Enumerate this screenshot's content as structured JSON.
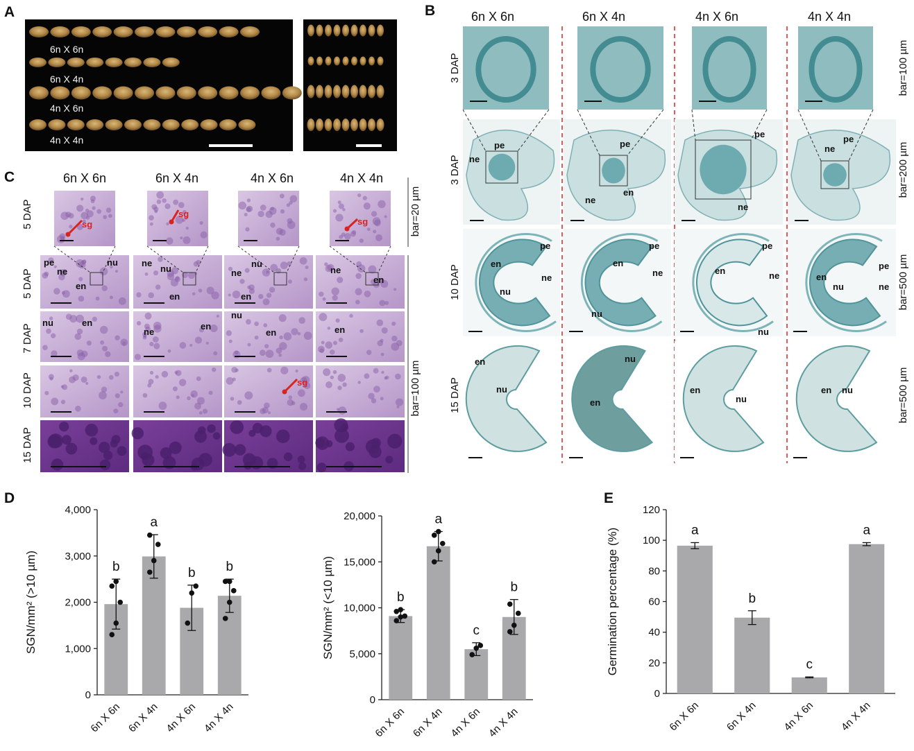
{
  "panels": {
    "A": {
      "label": "A",
      "seed_rows": [
        "6n X 6n",
        "6n X 4n",
        "4n X 6n",
        "4n X 4n"
      ]
    },
    "B": {
      "label": "B",
      "crosses": [
        "6n X 6n",
        "6n X 4n",
        "4n X 6n",
        "4n X 4n"
      ],
      "rows": [
        {
          "stage": "3 DAP",
          "bar": "bar=100 µm"
        },
        {
          "stage": "3 DAP",
          "bar": "bar=200 µm"
        },
        {
          "stage": "10 DAP",
          "bar": "bar=500 µm"
        },
        {
          "stage": "15 DAP",
          "bar": "bar=500 µm"
        }
      ],
      "tissue_labels": [
        "pe",
        "ne",
        "en",
        "nu"
      ]
    },
    "C": {
      "label": "C",
      "crosses": [
        "6n X 6n",
        "6n X 4n",
        "4n X 6n",
        "4n X 4n"
      ],
      "stages": [
        "5 DAP",
        "5 DAP",
        "7 DAP",
        "10 DAP",
        "15 DAP"
      ],
      "bar_top": "bar=20 µm",
      "bar_bottom": "bar=100 µm",
      "sg": "sg"
    },
    "D": {
      "label": "D"
    },
    "E": {
      "label": "E"
    }
  },
  "chart_data": [
    {
      "type": "bar",
      "panel": "D",
      "categories": [
        "6n X 6n",
        "6n X 4n",
        "4n X 6n",
        "4n X 4n"
      ],
      "values": [
        1960,
        2990,
        1880,
        2140
      ],
      "errors": [
        540,
        470,
        490,
        360
      ],
      "points": [
        [
          1300,
          1550,
          2000,
          2350,
          2450
        ],
        [
          2650,
          2900,
          3250,
          3450
        ],
        [
          1550,
          2200,
          2350
        ],
        [
          1650,
          2000,
          2250,
          2450,
          2450
        ]
      ],
      "letters": [
        "b",
        "a",
        "b",
        "b"
      ],
      "ylabel": "SGN/mm² (>10 µm)",
      "ylim": [
        0,
        4000
      ],
      "yticks": [
        "0",
        "1,000",
        "2,000",
        "3,000",
        "4,000"
      ],
      "bar_color": "#a9a9ab"
    },
    {
      "type": "bar",
      "panel": "D",
      "categories": [
        "6n X 6n",
        "6n X 4n",
        "4n X 6n",
        "4n X 4n"
      ],
      "values": [
        9100,
        16700,
        5500,
        9000
      ],
      "errors": [
        700,
        1600,
        700,
        1900
      ],
      "points": [
        [
          8600,
          9000,
          9100,
          9600,
          9800
        ],
        [
          15000,
          16200,
          17000,
          17900,
          18300
        ],
        [
          4900,
          5600,
          5900
        ],
        [
          7400,
          8100,
          9400,
          10400
        ]
      ],
      "letters": [
        "b",
        "a",
        "c",
        "b"
      ],
      "ylabel": "SGN/mm² (<10 µm)",
      "ylim": [
        0,
        20000
      ],
      "yticks": [
        "0",
        "5,000",
        "10,000",
        "15,000",
        "20,000"
      ],
      "bar_color": "#a9a9ab"
    },
    {
      "type": "bar",
      "panel": "E",
      "categories": [
        "6n X 6n",
        "6n X 4n",
        "4n X 6n",
        "4n X 4n"
      ],
      "values": [
        96.5,
        49.5,
        10.5,
        97.5
      ],
      "errors": [
        2,
        4.5,
        0.3,
        1
      ],
      "letters": [
        "a",
        "b",
        "c",
        "a"
      ],
      "ylabel": "Germination percentage (%)",
      "ylim": [
        0,
        120
      ],
      "yticks": [
        "0",
        "20",
        "40",
        "60",
        "80",
        "100",
        "120"
      ],
      "bar_color": "#a9a9ab"
    }
  ]
}
